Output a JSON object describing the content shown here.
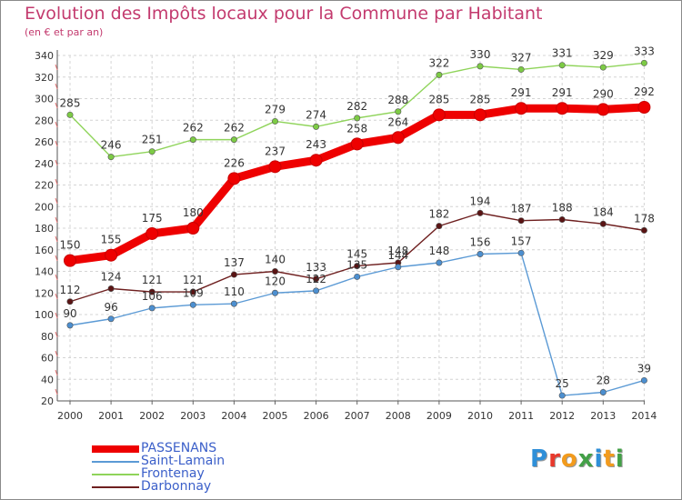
{
  "title": "Evolution des Impôts locaux pour la Commune par Habitant",
  "subtitle": "(en € et par an)",
  "logo": {
    "letters": [
      {
        "char": "P",
        "color": "#2f8fd8"
      },
      {
        "char": "r",
        "color": "#e8392c"
      },
      {
        "char": "o",
        "color": "#f29b1d"
      },
      {
        "char": "x",
        "color": "#43a047"
      },
      {
        "char": "i",
        "color": "#2f8fd8"
      },
      {
        "char": "t",
        "color": "#f29b1d"
      },
      {
        "char": "i",
        "color": "#43a047"
      }
    ]
  },
  "chart_data": {
    "type": "line",
    "x": [
      "2000",
      "2001",
      "2002",
      "2003",
      "2004",
      "2005",
      "2006",
      "2007",
      "2008",
      "2009",
      "2010",
      "2011",
      "2012",
      "2013",
      "2014"
    ],
    "ylim": [
      20,
      340
    ],
    "yticks": [
      20,
      40,
      60,
      80,
      100,
      120,
      140,
      160,
      180,
      200,
      220,
      240,
      260,
      280,
      300,
      320,
      340
    ],
    "grid": true,
    "legend_position": "bottom-left",
    "series": [
      {
        "name": "PASSENANS",
        "color": "#ee0000",
        "values": [
          150,
          155,
          175,
          180,
          226,
          237,
          243,
          258,
          264,
          285,
          285,
          291,
          291,
          290,
          292
        ]
      },
      {
        "name": "Saint-Lamain",
        "color": "#5b9ad5",
        "values": [
          90,
          96,
          106,
          109,
          110,
          120,
          122,
          135,
          144,
          148,
          156,
          157,
          25,
          28,
          39
        ]
      },
      {
        "name": "Frontenay",
        "color": "#8fd45a",
        "values": [
          285,
          246,
          251,
          262,
          262,
          279,
          274,
          282,
          288,
          322,
          330,
          327,
          331,
          329,
          333
        ]
      },
      {
        "name": "Darbonnay",
        "color": "#6e1f1f",
        "values": [
          112,
          124,
          121,
          121,
          137,
          140,
          133,
          145,
          148,
          182,
          194,
          187,
          188,
          184,
          178
        ]
      }
    ]
  }
}
